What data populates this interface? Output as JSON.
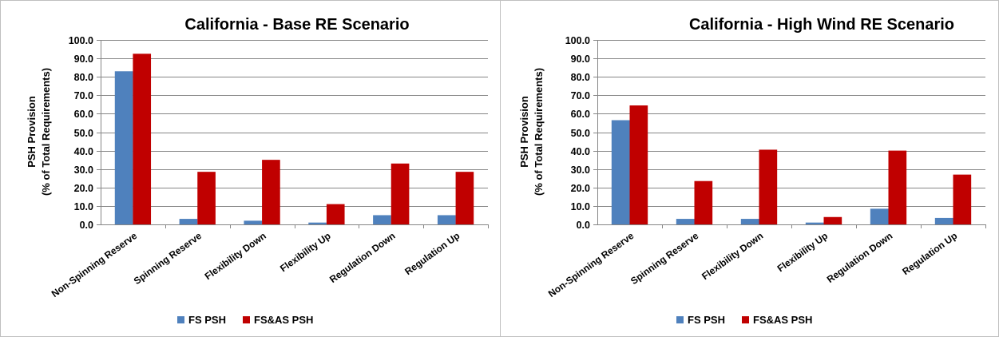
{
  "chart_data": [
    {
      "type": "bar",
      "title": "California  - Base RE Scenario",
      "ylabel_line1": "PSH Provision",
      "ylabel_line2": "(% of Total Requirements)",
      "xlabel": "",
      "ylim": [
        0,
        100
      ],
      "yticks": [
        "0.0",
        "10.0",
        "20.0",
        "30.0",
        "40.0",
        "50.0",
        "60.0",
        "70.0",
        "80.0",
        "90.0",
        "100.0"
      ],
      "grid": true,
      "legend_position": "bottom",
      "categories": [
        "Non-Spinning Reserve",
        "Spinning Reserve",
        "Flexibility Down",
        "Flexibility Up",
        "Regulation Down",
        "Regulation Up"
      ],
      "series": [
        {
          "name": "FS PSH",
          "color": "#4F81BD",
          "values": [
            83,
            3,
            2,
            1,
            5,
            5
          ]
        },
        {
          "name": "FS&AS PSH",
          "color": "#C00000",
          "values": [
            92.5,
            28.5,
            35,
            11,
            33,
            28.5
          ]
        }
      ]
    },
    {
      "type": "bar",
      "title": "California  - High Wind RE Scenario",
      "ylabel_line1": "PSH Provision",
      "ylabel_line2": "(% of Total Requirements)",
      "xlabel": "",
      "ylim": [
        0,
        100
      ],
      "yticks": [
        "0.0",
        "10.0",
        "20.0",
        "30.0",
        "40.0",
        "50.0",
        "60.0",
        "70.0",
        "80.0",
        "90.0",
        "100.0"
      ],
      "grid": true,
      "legend_position": "bottom",
      "categories": [
        "Non-Spinning Reserve",
        "Spinning Reserve",
        "Flexibility Down",
        "Flexibility Up",
        "Regulation Down",
        "Regulation Up"
      ],
      "series": [
        {
          "name": "FS PSH",
          "color": "#4F81BD",
          "values": [
            56.5,
            3,
            3,
            1,
            8.5,
            3.5
          ]
        },
        {
          "name": "FS&AS PSH",
          "color": "#C00000",
          "values": [
            64.5,
            23.5,
            40.5,
            4,
            40,
            27
          ]
        }
      ]
    }
  ]
}
